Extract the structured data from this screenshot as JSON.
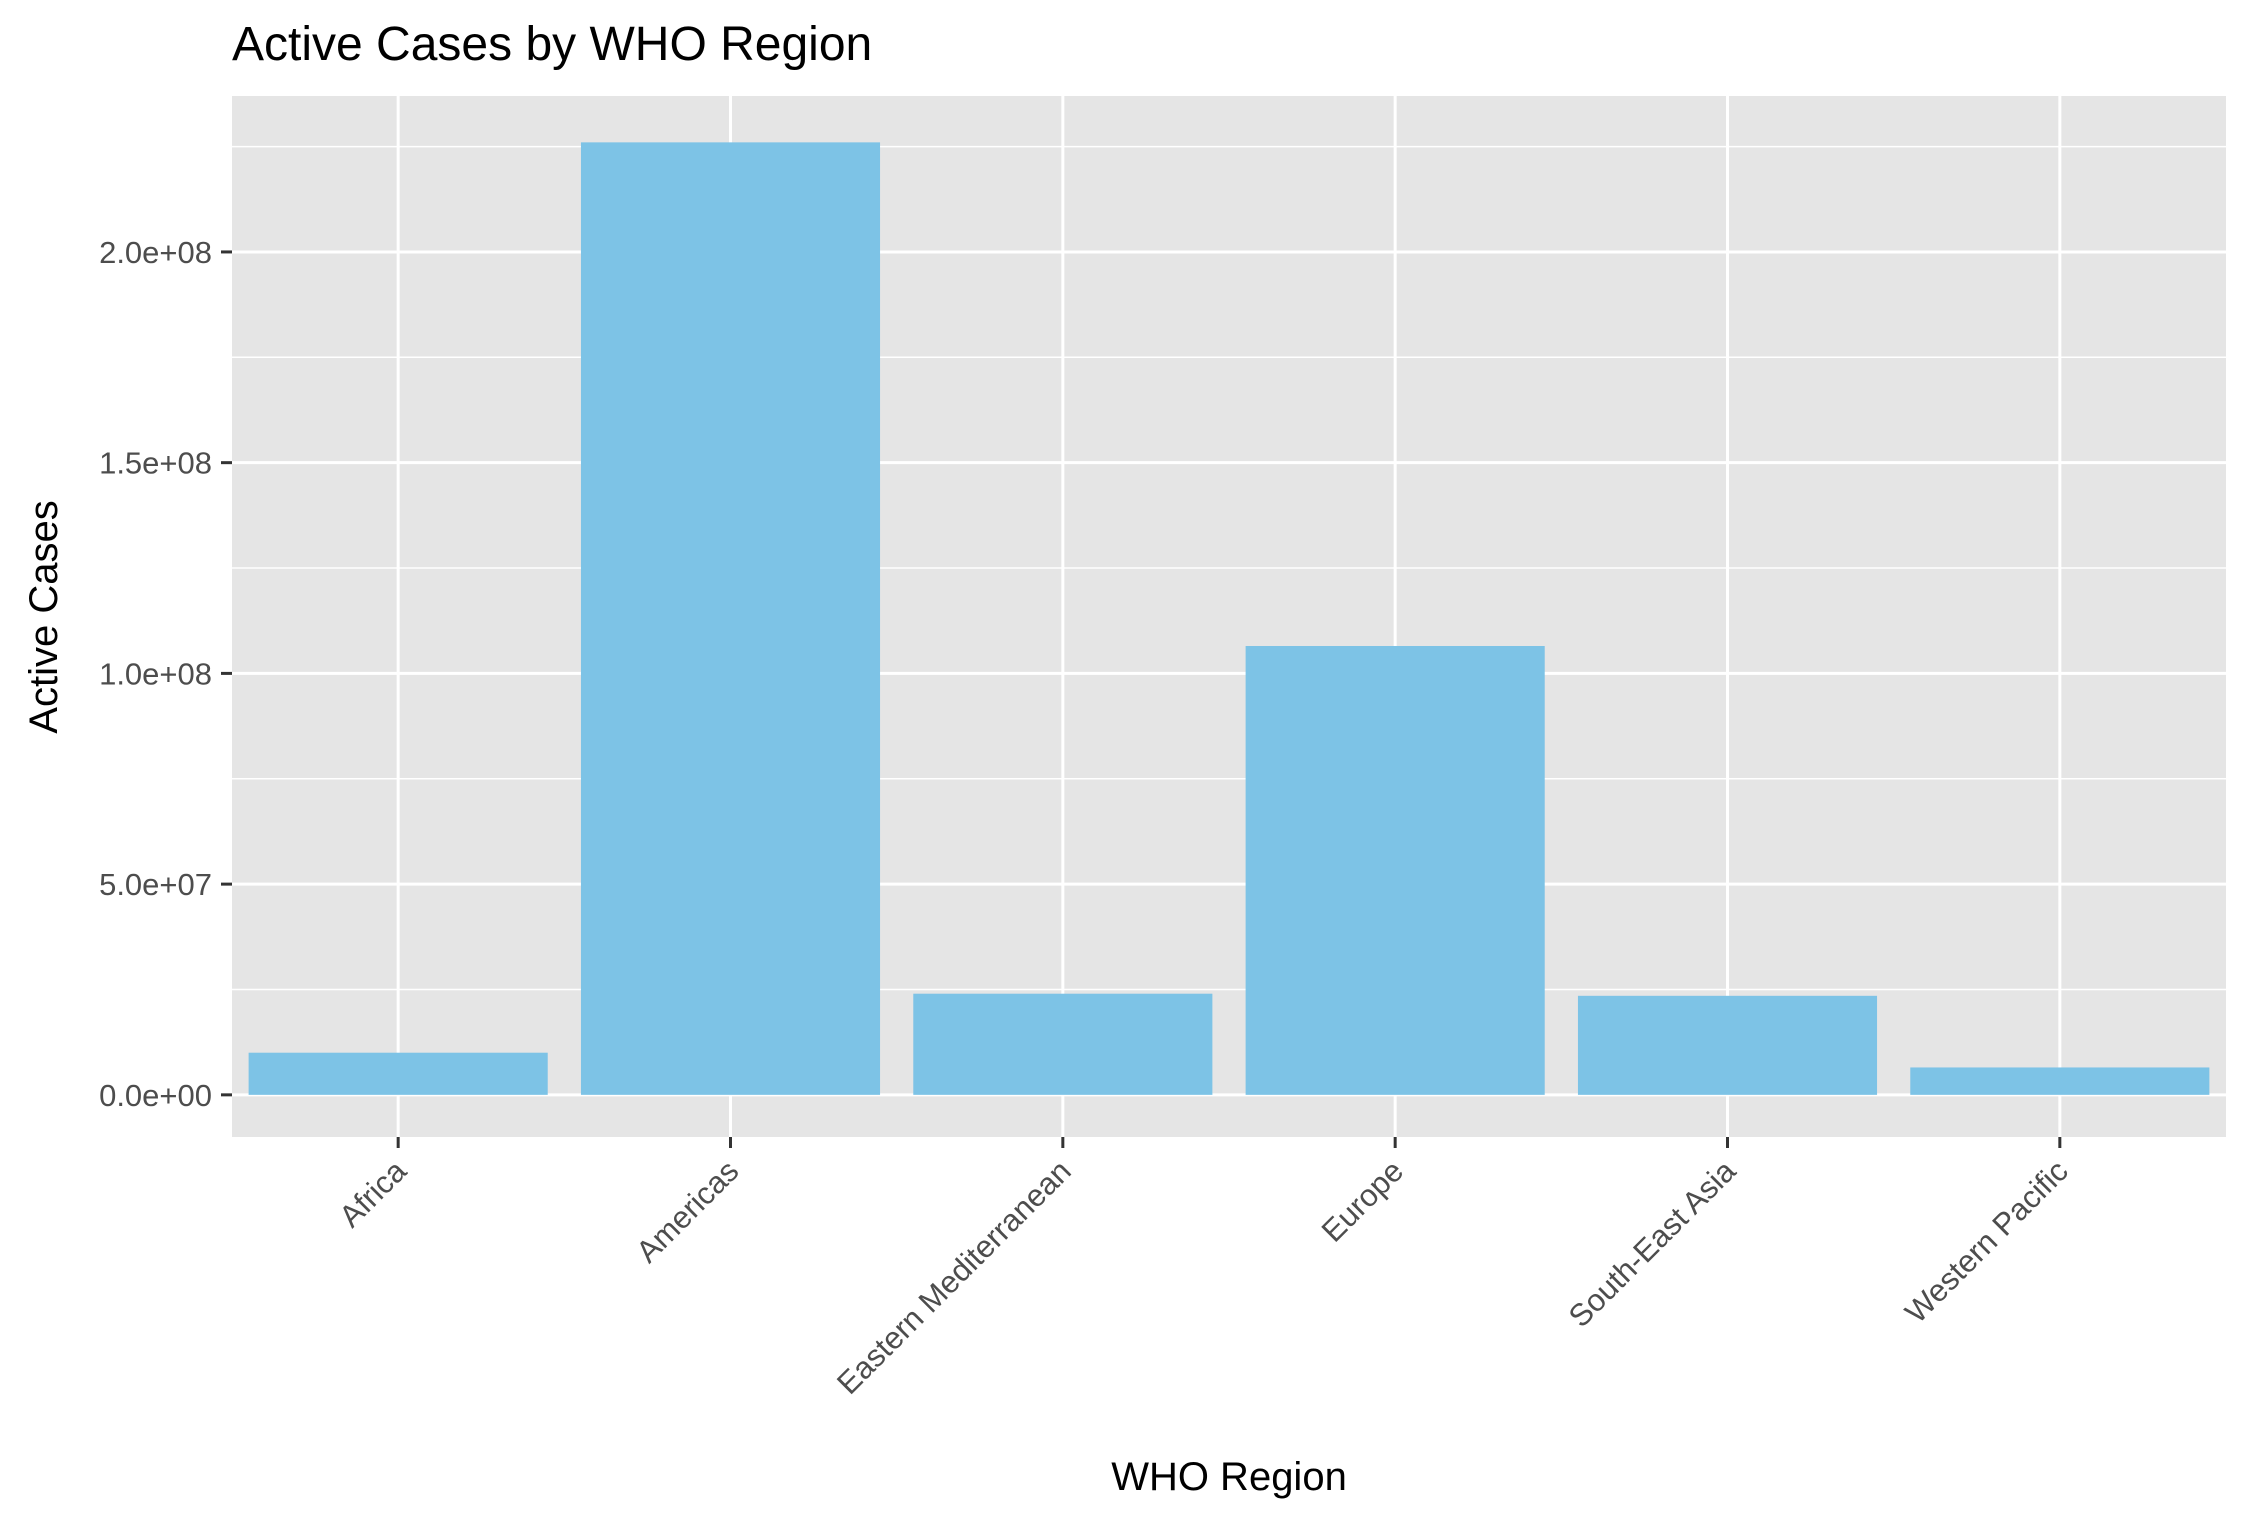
{
  "chart_data": {
    "type": "bar",
    "title": "Active Cases by WHO Region",
    "xlabel": "WHO Region",
    "ylabel": "Active Cases",
    "categories": [
      "Africa",
      "Americas",
      "Eastern Mediterranean",
      "Europe",
      "South-East Asia",
      "Western Pacific"
    ],
    "values": [
      10000000,
      226000000,
      24000000,
      106500000,
      23500000,
      6500000
    ],
    "ylim": [
      -10000000,
      237000000
    ],
    "yticks": [
      0,
      50000000,
      100000000,
      150000000,
      200000000
    ],
    "ytick_labels": [
      "0.0e+00",
      "5.0e+07",
      "1.0e+08",
      "1.5e+08",
      "2.0e+08"
    ],
    "bar_color": "#7DC3E6",
    "panel_background": "#E5E5E5",
    "grid": true,
    "legend": "none"
  }
}
